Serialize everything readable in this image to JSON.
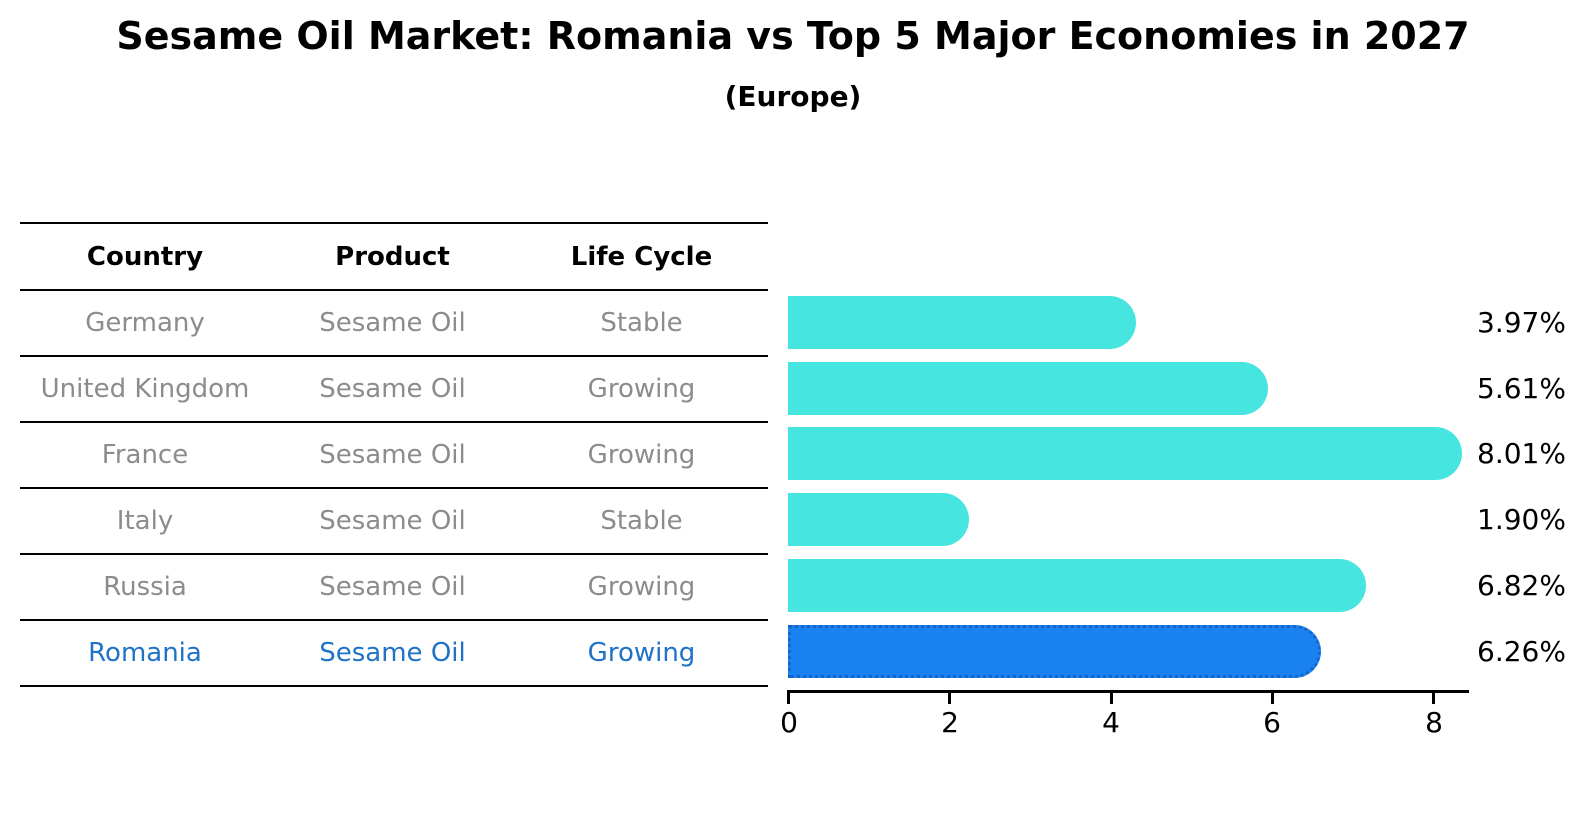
{
  "title": "Sesame Oil Market: Romania vs Top 5 Major Economies in 2027",
  "subtitle": "(Europe)",
  "table": {
    "headers": {
      "country": "Country",
      "product": "Product",
      "life_cycle": "Life Cycle"
    },
    "rows": [
      {
        "country": "Germany",
        "product": "Sesame Oil",
        "life_cycle": "Stable",
        "highlighted": false
      },
      {
        "country": "United Kingdom",
        "product": "Sesame Oil",
        "life_cycle": "Growing",
        "highlighted": false
      },
      {
        "country": "France",
        "product": "Sesame Oil",
        "life_cycle": "Growing",
        "highlighted": false
      },
      {
        "country": "Italy",
        "product": "Sesame Oil",
        "life_cycle": "Stable",
        "highlighted": false
      },
      {
        "country": "Russia",
        "product": "Sesame Oil",
        "life_cycle": "Growing",
        "highlighted": false
      },
      {
        "country": "Romania",
        "product": "Sesame Oil",
        "life_cycle": "Growing",
        "highlighted": true
      }
    ]
  },
  "chart_data": {
    "type": "bar",
    "orientation": "horizontal",
    "categories": [
      "Germany",
      "United Kingdom",
      "France",
      "Italy",
      "Russia",
      "Romania"
    ],
    "values": [
      3.97,
      5.61,
      8.01,
      1.9,
      6.82,
      6.26
    ],
    "value_labels": [
      "3.97%",
      "5.61%",
      "8.01%",
      "1.90%",
      "6.82%",
      "6.26%"
    ],
    "highlight_index": 5,
    "xticks": [
      "0",
      "2",
      "4",
      "6",
      "8"
    ],
    "xlim": [
      0,
      8.5
    ],
    "grid": false,
    "legend": false,
    "bar_color": "#46e5e0",
    "highlight_bar_color": "#1a82f0",
    "highlight_text_color": "#1f72c8",
    "table_text_color": "#8c8c8c"
  }
}
